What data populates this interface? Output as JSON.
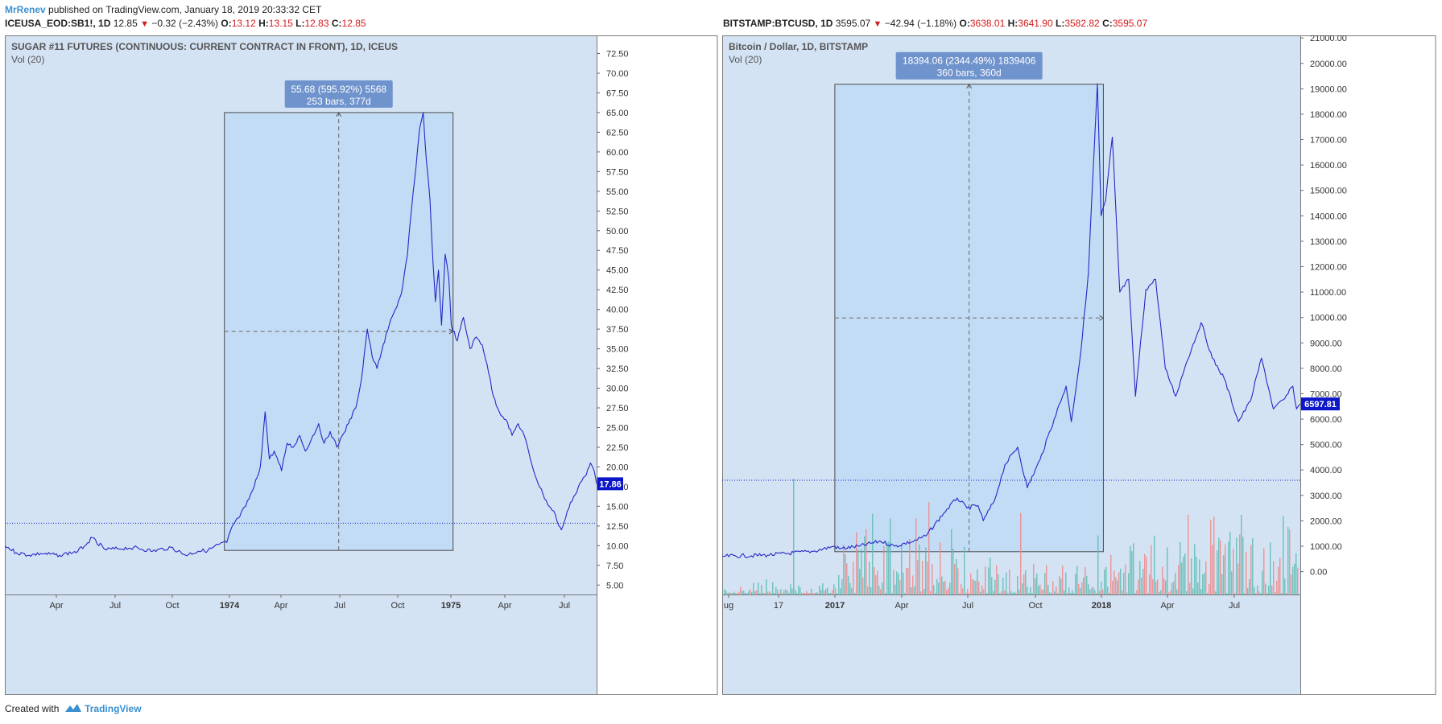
{
  "header": {
    "author": "MrRenev",
    "published": "published on TradingView.com, January 18, 2019 20:33:32 CET"
  },
  "charts_info": [
    {
      "symbol": "ICEUSA_EOD:SB1!, 1D",
      "last": "12.85",
      "change": "−0.32 (−2.43%)",
      "ohlc": {
        "O": "13.12",
        "H": "13.15",
        "L": "12.83",
        "C": "12.85"
      }
    },
    {
      "symbol": "BITSTAMP:BTCUSD, 1D",
      "last": "3595.07",
      "change": "−42.94 (−1.18%)",
      "ohlc": {
        "O": "3638.01",
        "H": "3641.90",
        "L": "3582.82",
        "C": "3595.07"
      }
    }
  ],
  "footer": {
    "created_with": "Created with",
    "brand": "TradingView"
  },
  "colors": {
    "pane_bg": "#d4e3f4",
    "range_box": "#c3dcf5",
    "price_line": "#2727c8",
    "price_tag": "#0c17c9",
    "label_bg": "#6f93cc",
    "volume_up": "#5fbdb3",
    "volume_down": "#ee8a8a",
    "down_red": "#d41c1c"
  },
  "chart_data": [
    {
      "type": "line",
      "title": "SUGAR #11 FUTURES (CONTINUOUS: CURRENT CONTRACT IN FRONT), 1D, ICEUS",
      "subtitle": "Vol (20)",
      "x_labels": [
        "Apr",
        "Jul",
        "Oct",
        "1974",
        "Apr",
        "Jul",
        "Oct",
        "1975",
        "Apr",
        "Jul"
      ],
      "y_ticks": [
        "72.50",
        "70.00",
        "67.50",
        "65.00",
        "62.50",
        "60.00",
        "57.50",
        "55.00",
        "52.50",
        "50.00",
        "47.50",
        "45.00",
        "42.50",
        "40.00",
        "37.50",
        "35.00",
        "32.50",
        "30.00",
        "27.50",
        "25.00",
        "22.50",
        "20.00",
        "17.50",
        "15.00",
        "12.50",
        "10.00",
        "7.50",
        "5.00"
      ],
      "ylim": [
        3.8,
        74.8
      ],
      "x_start": "1973-01-01",
      "x_end": "1975-09-01",
      "series": [
        {
          "points": [
            [
              "1973-01-01",
              10.0
            ],
            [
              "1973-01-20",
              9.1
            ],
            [
              "1973-02-10",
              8.8
            ],
            [
              "1973-03-01",
              9.0
            ],
            [
              "1973-04-01",
              8.8
            ],
            [
              "1973-05-01",
              9.3
            ],
            [
              "1973-05-25",
              11.0
            ],
            [
              "1973-06-15",
              9.5
            ],
            [
              "1973-07-05",
              9.6
            ],
            [
              "1973-08-01",
              9.8
            ],
            [
              "1973-09-01",
              9.3
            ],
            [
              "1973-10-01",
              9.8
            ],
            [
              "1973-10-25",
              8.8
            ],
            [
              "1973-11-15",
              9.3
            ],
            [
              "1973-12-01",
              9.4
            ],
            [
              "1973-12-20",
              10.2
            ],
            [
              "1974-01-01",
              10.4
            ],
            [
              "1974-01-10",
              12.5
            ],
            [
              "1974-01-20",
              13.5
            ],
            [
              "1974-02-01",
              15.0
            ],
            [
              "1974-02-15",
              17.5
            ],
            [
              "1974-02-25",
              20.0
            ],
            [
              "1974-03-05",
              27.0
            ],
            [
              "1974-03-12",
              21.0
            ],
            [
              "1974-03-20",
              22.0
            ],
            [
              "1974-04-01",
              19.5
            ],
            [
              "1974-04-10",
              23.0
            ],
            [
              "1974-04-20",
              22.5
            ],
            [
              "1974-05-01",
              24.0
            ],
            [
              "1974-05-10",
              22.0
            ],
            [
              "1974-05-20",
              23.5
            ],
            [
              "1974-06-01",
              25.5
            ],
            [
              "1974-06-10",
              23.0
            ],
            [
              "1974-06-20",
              24.5
            ],
            [
              "1974-07-01",
              22.5
            ],
            [
              "1974-07-10",
              24.0
            ],
            [
              "1974-07-20",
              25.5
            ],
            [
              "1974-08-01",
              27.5
            ],
            [
              "1974-08-10",
              31.0
            ],
            [
              "1974-08-20",
              37.5
            ],
            [
              "1974-08-28",
              34.0
            ],
            [
              "1974-09-05",
              32.5
            ],
            [
              "1974-09-15",
              35.5
            ],
            [
              "1974-09-25",
              38.0
            ],
            [
              "1974-10-05",
              40.0
            ],
            [
              "1974-10-15",
              42.0
            ],
            [
              "1974-10-25",
              47.0
            ],
            [
              "1974-11-01",
              53.0
            ],
            [
              "1974-11-08",
              58.0
            ],
            [
              "1974-11-14",
              63.0
            ],
            [
              "1974-11-20",
              65.0
            ],
            [
              "1974-11-25",
              59.0
            ],
            [
              "1974-12-01",
              54.0
            ],
            [
              "1974-12-06",
              46.0
            ],
            [
              "1974-12-10",
              41.0
            ],
            [
              "1974-12-15",
              45.0
            ],
            [
              "1974-12-20",
              38.0
            ],
            [
              "1974-12-26",
              47.0
            ],
            [
              "1975-01-01",
              44.0
            ],
            [
              "1975-01-05",
              38.0
            ],
            [
              "1975-01-15",
              36.0
            ],
            [
              "1975-01-25",
              39.0
            ],
            [
              "1975-02-05",
              35.0
            ],
            [
              "1975-02-15",
              36.5
            ],
            [
              "1975-02-25",
              35.5
            ],
            [
              "1975-03-05",
              33.0
            ],
            [
              "1975-03-15",
              29.0
            ],
            [
              "1975-03-25",
              27.0
            ],
            [
              "1975-04-05",
              26.0
            ],
            [
              "1975-04-15",
              24.0
            ],
            [
              "1975-04-25",
              25.5
            ],
            [
              "1975-05-05",
              24.0
            ],
            [
              "1975-05-15",
              21.0
            ],
            [
              "1975-05-25",
              18.5
            ],
            [
              "1975-06-05",
              16.5
            ],
            [
              "1975-06-15",
              15.0
            ],
            [
              "1975-06-25",
              14.0
            ],
            [
              "1975-07-01",
              12.5
            ],
            [
              "1975-07-05",
              12.0
            ],
            [
              "1975-07-12",
              13.5
            ],
            [
              "1975-07-20",
              15.5
            ],
            [
              "1975-07-28",
              16.5
            ],
            [
              "1975-08-05",
              18.0
            ],
            [
              "1975-08-15",
              19.0
            ],
            [
              "1975-08-22",
              20.5
            ],
            [
              "1975-08-28",
              19.5
            ],
            [
              "1975-09-01",
              17.86
            ]
          ]
        }
      ],
      "last_price": "17.86",
      "hline": 12.85,
      "measure": {
        "line1": "55.68 (595.92%) 5568",
        "line2": "253 bars, 377d",
        "from": [
          "1973-12-28",
          9.4
        ],
        "to": [
          "1975-01-08",
          65.0
        ]
      }
    },
    {
      "type": "line",
      "title": "Bitcoin / Dollar, 1D, BITSTAMP",
      "subtitle": "Vol (20)",
      "x_labels": [
        "ug",
        "17",
        "2017",
        "Apr",
        "Jul",
        "Oct",
        "2018",
        "Apr",
        "Jul"
      ],
      "y_ticks": [
        "21000.00",
        "20000.00",
        "19000.00",
        "18000.00",
        "17000.00",
        "16000.00",
        "15000.00",
        "14000.00",
        "13000.00",
        "12000.00",
        "11000.00",
        "10000.00",
        "9000.00",
        "8000.00",
        "7000.00",
        "6000.00",
        "5000.00",
        "4000.00",
        "3000.00",
        "2000.00",
        "1000.00",
        "0.00"
      ],
      "ylim": [
        -900,
        21100
      ],
      "x_start": "2016-08-01",
      "x_end": "2018-09-15",
      "series": [
        {
          "points": [
            [
              "2016-08-01",
              600
            ],
            [
              "2016-10-01",
              650
            ],
            [
              "2016-12-01",
              800
            ],
            [
              "2016-12-30",
              1000
            ],
            [
              "2017-01-05",
              900
            ],
            [
              "2017-02-01",
              1000
            ],
            [
              "2017-03-01",
              1200
            ],
            [
              "2017-03-20",
              1000
            ],
            [
              "2017-04-15",
              1200
            ],
            [
              "2017-05-01",
              1400
            ],
            [
              "2017-05-25",
              2300
            ],
            [
              "2017-06-12",
              2900
            ],
            [
              "2017-06-25",
              2500
            ],
            [
              "2017-07-10",
              2600
            ],
            [
              "2017-07-17",
              2000
            ],
            [
              "2017-08-01",
              2800
            ],
            [
              "2017-08-15",
              4200
            ],
            [
              "2017-09-01",
              4900
            ],
            [
              "2017-09-14",
              3300
            ],
            [
              "2017-10-01",
              4400
            ],
            [
              "2017-10-20",
              6000
            ],
            [
              "2017-11-05",
              7300
            ],
            [
              "2017-11-12",
              5900
            ],
            [
              "2017-11-25",
              8700
            ],
            [
              "2017-12-05",
              11800
            ],
            [
              "2017-12-10",
              15000
            ],
            [
              "2017-12-17",
              19200
            ],
            [
              "2017-12-22",
              14000
            ],
            [
              "2017-12-28",
              14600
            ],
            [
              "2018-01-06",
              17100
            ],
            [
              "2018-01-16",
              11000
            ],
            [
              "2018-01-28",
              11500
            ],
            [
              "2018-02-06",
              6900
            ],
            [
              "2018-02-20",
              11100
            ],
            [
              "2018-03-05",
              11500
            ],
            [
              "2018-03-18",
              8000
            ],
            [
              "2018-04-01",
              6900
            ],
            [
              "2018-04-15",
              8200
            ],
            [
              "2018-05-05",
              9800
            ],
            [
              "2018-05-20",
              8400
            ],
            [
              "2018-06-05",
              7600
            ],
            [
              "2018-06-24",
              5900
            ],
            [
              "2018-07-10",
              6700
            ],
            [
              "2018-07-25",
              8400
            ],
            [
              "2018-08-10",
              6400
            ],
            [
              "2018-08-25",
              6800
            ],
            [
              "2018-09-05",
              7300
            ],
            [
              "2018-09-10",
              6400
            ],
            [
              "2018-09-15",
              6597.81
            ]
          ]
        }
      ],
      "last_price": "6597.81",
      "hline": 3595.07,
      "measure": {
        "line1": "18394.06 (2344.49%) 1839406",
        "line2": "360 bars, 360d",
        "from": [
          "2016-12-30",
          784
        ],
        "to": [
          "2017-12-25",
          19178
        ]
      }
    }
  ]
}
